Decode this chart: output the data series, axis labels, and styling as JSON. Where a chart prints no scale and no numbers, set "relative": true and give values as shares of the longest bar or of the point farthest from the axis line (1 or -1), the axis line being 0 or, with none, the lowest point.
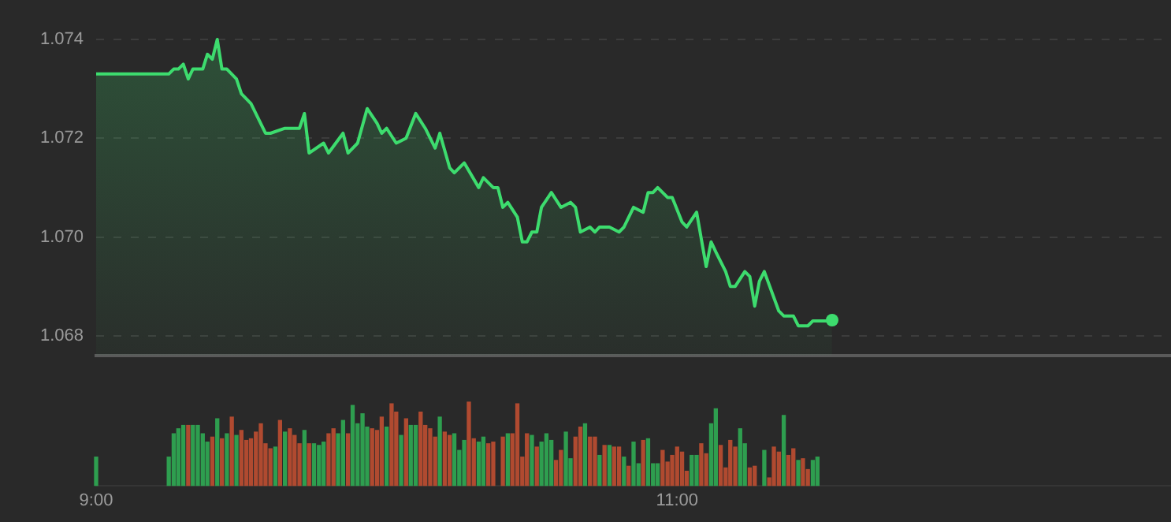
{
  "chart_data": [
    {
      "type": "area",
      "xlim": [
        9,
        12.7
      ],
      "ylim": [
        1.0676,
        1.074
      ],
      "yticks": [
        1.068,
        {
          "value": 1.07,
          "label": "1.070"
        },
        1.072,
        1.074
      ],
      "grid": "y",
      "tick_labels": "y",
      "series": [
        {
          "color": "#3ddc6e",
          "x": [
            9,
            9.25,
            9.267,
            9.283,
            9.3,
            9.317,
            9.333,
            9.367,
            9.383,
            9.4,
            9.417,
            9.433,
            9.45,
            9.483,
            9.5,
            9.533,
            9.583,
            9.6,
            9.65,
            9.683,
            9.7,
            9.717,
            9.733,
            9.783,
            9.8,
            9.85,
            9.867,
            9.9,
            9.933,
            9.967,
            9.983,
            10,
            10.033,
            10.067,
            10.1,
            10.133,
            10.167,
            10.183,
            10.217,
            10.233,
            10.267,
            10.317,
            10.333,
            10.367,
            10.383,
            10.4,
            10.417,
            10.45,
            10.467,
            10.483,
            10.5,
            10.517,
            10.533,
            10.567,
            10.6,
            10.633,
            10.65,
            10.667,
            10.7,
            10.717,
            10.733,
            10.767,
            10.8,
            10.817,
            10.85,
            10.883,
            10.9,
            10.917,
            10.933,
            10.967,
            10.983,
            11.017,
            11.033,
            11.067,
            11.1,
            11.117,
            11.133,
            11.167,
            11.183,
            11.2,
            11.233,
            11.25,
            11.267,
            11.283,
            11.3,
            11.35,
            11.367,
            11.4,
            11.417,
            11.45,
            11.467,
            11.533
          ],
          "values": [
            1.0733,
            1.0733,
            1.0734,
            1.0734,
            1.0735,
            1.0732,
            1.0734,
            1.0734,
            1.0737,
            1.0736,
            1.074,
            1.0734,
            1.0734,
            1.0732,
            1.0729,
            1.0727,
            1.0721,
            1.0721,
            1.0722,
            1.0722,
            1.0722,
            1.0725,
            1.0717,
            1.0719,
            1.0717,
            1.0721,
            1.0717,
            1.0719,
            1.0726,
            1.0723,
            1.0721,
            1.0722,
            1.0719,
            1.072,
            1.0725,
            1.0722,
            1.0718,
            1.0721,
            1.0714,
            1.0713,
            1.0715,
            1.071,
            1.0712,
            1.071,
            1.071,
            1.0706,
            1.0707,
            1.0704,
            1.0699,
            1.0699,
            1.0701,
            1.0701,
            1.0706,
            1.0709,
            1.0706,
            1.0707,
            1.0706,
            1.0701,
            1.0702,
            1.0701,
            1.0702,
            1.0702,
            1.0701,
            1.0702,
            1.0706,
            1.0705,
            1.0709,
            1.0709,
            1.071,
            1.0708,
            1.0708,
            1.0703,
            1.0702,
            1.0705,
            1.0694,
            1.0699,
            1.0697,
            1.0693,
            1.069,
            1.069,
            1.0693,
            1.0692,
            1.0686,
            1.0691,
            1.0693,
            1.0685,
            1.0684,
            1.0684,
            1.0682,
            1.0682,
            1.0683,
            1.0683
          ]
        }
      ]
    },
    {
      "type": "bar",
      "relative": true,
      "xlim": [
        9,
        12.7
      ],
      "xticks": [
        {
          "value": 9,
          "label": "9:00"
        },
        {
          "value": 11,
          "label": "11:00"
        }
      ],
      "tick_labels": "x",
      "series": [
        {
          "color": "#2e9e4f",
          "x": [
            9,
            9.25,
            9.267,
            9.283,
            9.3,
            9.333,
            9.35,
            9.367,
            9.383,
            9.417,
            9.45,
            9.483,
            9.617,
            9.65,
            9.717,
            9.75,
            9.767,
            9.783,
            9.833,
            9.85,
            9.883,
            9.9,
            9.917,
            9.933,
            10,
            10.05,
            10.083,
            10.1,
            10.183,
            10.233,
            10.25,
            10.267,
            10.317,
            10.333,
            10.417,
            10.5,
            10.533,
            10.55,
            10.567,
            10.617,
            10.633,
            10.683,
            10.733,
            10.767,
            10.817,
            10.85,
            10.867,
            10.9,
            10.917,
            10.933,
            11.05,
            11.067,
            11.117,
            11.133,
            11.217,
            11.233,
            11.3,
            11.367,
            11.417,
            11.467,
            11.483
          ],
          "values": [
            0.34,
            0.34,
            0.62,
            0.68,
            0.72,
            0.72,
            0.72,
            0.62,
            0.52,
            0.8,
            0.62,
            0.6,
            0.46,
            0.64,
            0.66,
            0.5,
            0.48,
            0.52,
            0.62,
            0.78,
            0.96,
            0.74,
            0.86,
            0.7,
            0.7,
            0.6,
            0.72,
            0.72,
            0.82,
            0.62,
            0.42,
            0.54,
            0.52,
            0.58,
            0.62,
            0.6,
            0.52,
            0.62,
            0.54,
            0.64,
            0.32,
            0.74,
            0.36,
            0.48,
            0.34,
            0.52,
            0.26,
            0.56,
            0.26,
            0.26,
            0.36,
            0.36,
            0.74,
            0.92,
            0.68,
            0.5,
            0.42,
            0.84,
            0.3,
            0.3,
            0.34
          ]
        },
        {
          "color": "#b04a30",
          "x": [
            9.317,
            9.4,
            9.433,
            9.467,
            9.5,
            9.517,
            9.533,
            9.55,
            9.567,
            9.583,
            9.6,
            9.633,
            9.667,
            9.683,
            9.7,
            9.733,
            9.8,
            9.817,
            9.867,
            9.95,
            9.967,
            9.983,
            10.017,
            10.033,
            10.067,
            10.117,
            10.133,
            10.15,
            10.167,
            10.2,
            10.217,
            10.283,
            10.3,
            10.35,
            10.367,
            10.4,
            10.433,
            10.45,
            10.467,
            10.483,
            10.517,
            10.583,
            10.6,
            10.65,
            10.667,
            10.7,
            10.717,
            10.75,
            10.783,
            10.8,
            10.833,
            10.883,
            10.95,
            10.967,
            10.983,
            11,
            11.017,
            11.033,
            11.083,
            11.1,
            11.15,
            11.167,
            11.183,
            11.2,
            11.25,
            11.267,
            11.317,
            11.333,
            11.35,
            11.383,
            11.4,
            11.433,
            11.45
          ],
          "values": [
            0.72,
            0.58,
            0.56,
            0.82,
            0.66,
            0.54,
            0.56,
            0.64,
            0.74,
            0.5,
            0.44,
            0.78,
            0.68,
            0.6,
            0.5,
            0.5,
            0.62,
            0.68,
            0.62,
            0.68,
            0.66,
            0.82,
            0.98,
            0.88,
            0.8,
            0.88,
            0.72,
            0.68,
            0.58,
            0.64,
            0.6,
            1,
            0.56,
            0.5,
            0.52,
            0.58,
            0.62,
            0.98,
            0.34,
            0.62,
            0.46,
            0.3,
            0.42,
            0.58,
            0.7,
            0.58,
            0.58,
            0.48,
            0.46,
            0.46,
            0.23,
            0.54,
            0.42,
            0.28,
            0.36,
            0.46,
            0.4,
            0.17,
            0.5,
            0.38,
            0.48,
            0.21,
            0.54,
            0.46,
            0.21,
            0.23,
            0.09,
            0.46,
            0.4,
            0.36,
            0.44,
            0.32,
            0.19
          ]
        }
      ]
    }
  ]
}
